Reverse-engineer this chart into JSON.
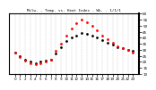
{
  "title": "Milw. - Temp. vs. Heat Index - Wk. - 1/1/1",
  "xlabel": "",
  "ylabel": "",
  "background_color": "#ffffff",
  "plot_bg_color": "#ffffff",
  "grid_color": "#aaaaaa",
  "temp_color": "#000000",
  "heat_color": "#ff0000",
  "x_labels": [
    "0",
    "1",
    "2",
    "3",
    "4",
    "5",
    "6",
    "7",
    "8",
    "9",
    "10",
    "11",
    "12",
    "13",
    "14",
    "15",
    "16",
    "17",
    "18",
    "19",
    "20",
    "21",
    "22",
    "23"
  ],
  "temp_values": [
    28,
    25,
    22,
    20,
    19,
    20,
    21,
    22,
    27,
    32,
    37,
    40,
    42,
    44,
    43,
    42,
    40,
    38,
    36,
    34,
    32,
    31,
    30,
    29
  ],
  "heat_values": [
    28,
    24,
    21,
    19,
    18,
    19,
    20,
    22,
    29,
    35,
    42,
    48,
    52,
    55,
    53,
    50,
    46,
    42,
    39,
    36,
    33,
    31,
    30,
    28
  ],
  "ylim_min": 10,
  "ylim_max": 60,
  "y_ticks": [
    10,
    15,
    20,
    25,
    30,
    35,
    40,
    45,
    50,
    55,
    60
  ],
  "right_axis_labels": [
    "60",
    "55",
    "50",
    "45",
    "40",
    "35",
    "30",
    "25",
    "20",
    "15",
    "10"
  ],
  "marker_size": 2
}
